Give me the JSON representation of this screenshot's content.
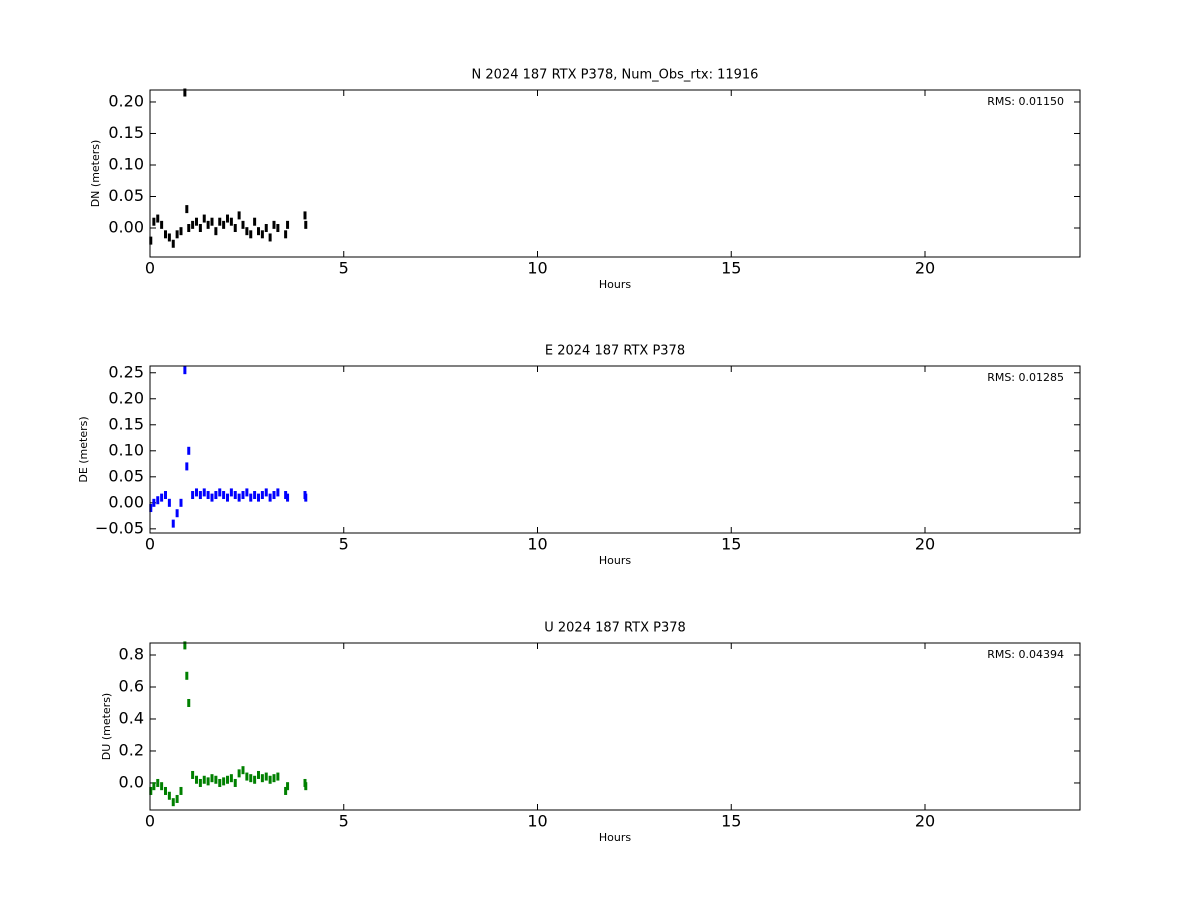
{
  "chart_data": [
    {
      "type": "scatter",
      "title": "N 2024 187 RTX  P378, Num_Obs_rtx: 11916",
      "x_label": "Hours",
      "y_label": "DN (meters)",
      "annotation": "RMS:  0.01150",
      "annotation_color": "#0000ff",
      "xlim": [
        0,
        24
      ],
      "xticks": [
        0,
        5,
        10,
        15,
        20
      ],
      "ylim": [
        -0.046,
        0.219
      ],
      "yticks": [
        {
          "value": 0,
          "label": "0.00"
        },
        {
          "value": 0.05,
          "label": "0.05"
        },
        {
          "value": 0.1,
          "label": "0.10"
        },
        {
          "value": 0.15,
          "label": "0.15"
        },
        {
          "value": 0.2,
          "label": "0.20"
        }
      ],
      "color": "#000000",
      "x": [
        0.02,
        0.1,
        0.2,
        0.3,
        0.4,
        0.5,
        0.6,
        0.7,
        0.8,
        0.9,
        0.95,
        1.0,
        1.1,
        1.2,
        1.3,
        1.4,
        1.5,
        1.6,
        1.7,
        1.8,
        1.9,
        2.0,
        2.1,
        2.2,
        2.3,
        2.4,
        2.5,
        2.6,
        2.7,
        2.8,
        2.9,
        3.0,
        3.1,
        3.2,
        3.3,
        3.5,
        3.55,
        4.0,
        4.02
      ],
      "values": [
        -0.02,
        0.01,
        0.015,
        0.005,
        -0.01,
        -0.015,
        -0.025,
        -0.01,
        -0.005,
        0.215,
        0.03,
        0.0,
        0.005,
        0.01,
        0.0,
        0.015,
        0.005,
        0.01,
        -0.005,
        0.01,
        0.005,
        0.015,
        0.01,
        0.0,
        0.02,
        0.005,
        -0.005,
        -0.01,
        0.01,
        -0.005,
        -0.01,
        0.0,
        -0.015,
        0.005,
        0.0,
        -0.01,
        0.005,
        0.02,
        0.005
      ]
    },
    {
      "type": "scatter",
      "title": "E 2024 187 RTX  P378",
      "x_label": "Hours",
      "y_label": "DE (meters)",
      "annotation": "RMS:  0.01285",
      "annotation_color": "#0000ff",
      "xlim": [
        0,
        24
      ],
      "xticks": [
        0,
        5,
        10,
        15,
        20
      ],
      "ylim": [
        -0.058,
        0.263
      ],
      "yticks": [
        {
          "value": -0.05,
          "label": "−0.05"
        },
        {
          "value": 0,
          "label": "0.00"
        },
        {
          "value": 0.05,
          "label": "0.05"
        },
        {
          "value": 0.1,
          "label": "0.10"
        },
        {
          "value": 0.15,
          "label": "0.15"
        },
        {
          "value": 0.2,
          "label": "0.20"
        },
        {
          "value": 0.25,
          "label": "0.25"
        }
      ],
      "color": "#0000ff",
      "x": [
        0.02,
        0.1,
        0.2,
        0.3,
        0.4,
        0.5,
        0.6,
        0.7,
        0.8,
        0.9,
        0.95,
        1.0,
        1.1,
        1.2,
        1.3,
        1.4,
        1.5,
        1.6,
        1.7,
        1.8,
        1.9,
        2.0,
        2.1,
        2.2,
        2.3,
        2.4,
        2.5,
        2.6,
        2.7,
        2.8,
        2.9,
        3.0,
        3.1,
        3.2,
        3.3,
        3.5,
        3.55,
        4.0,
        4.02
      ],
      "values": [
        -0.01,
        0.0,
        0.005,
        0.01,
        0.015,
        0.0,
        -0.04,
        -0.02,
        0.0,
        0.255,
        0.07,
        0.1,
        0.015,
        0.02,
        0.015,
        0.02,
        0.015,
        0.01,
        0.015,
        0.02,
        0.015,
        0.01,
        0.02,
        0.015,
        0.01,
        0.015,
        0.02,
        0.01,
        0.015,
        0.01,
        0.015,
        0.02,
        0.01,
        0.015,
        0.02,
        0.015,
        0.01,
        0.015,
        0.01
      ]
    },
    {
      "type": "scatter",
      "title": "U 2024 187 RTX  P378",
      "x_label": "Hours",
      "y_label": "DU (meters)",
      "annotation": "RMS:  0.04394",
      "annotation_color": "#0000ff",
      "xlim": [
        0,
        24
      ],
      "xticks": [
        0,
        5,
        10,
        15,
        20
      ],
      "ylim": [
        -0.169,
        0.875
      ],
      "yticks": [
        {
          "value": 0,
          "label": "0.0"
        },
        {
          "value": 0.2,
          "label": "0.2"
        },
        {
          "value": 0.4,
          "label": "0.4"
        },
        {
          "value": 0.6,
          "label": "0.6"
        },
        {
          "value": 0.8,
          "label": "0.8"
        }
      ],
      "color": "#008000",
      "x": [
        0.02,
        0.1,
        0.2,
        0.3,
        0.4,
        0.5,
        0.6,
        0.7,
        0.8,
        0.9,
        0.95,
        1.0,
        1.1,
        1.2,
        1.3,
        1.4,
        1.5,
        1.6,
        1.7,
        1.8,
        1.9,
        2.0,
        2.1,
        2.2,
        2.3,
        2.4,
        2.5,
        2.6,
        2.7,
        2.8,
        2.9,
        3.0,
        3.1,
        3.2,
        3.3,
        3.5,
        3.55,
        4.0,
        4.02
      ],
      "values": [
        -0.05,
        -0.02,
        0.0,
        -0.02,
        -0.05,
        -0.08,
        -0.12,
        -0.1,
        -0.05,
        0.86,
        0.67,
        0.5,
        0.05,
        0.02,
        0.0,
        0.02,
        0.01,
        0.03,
        0.02,
        0.0,
        0.01,
        0.02,
        0.03,
        0.0,
        0.06,
        0.08,
        0.04,
        0.03,
        0.02,
        0.05,
        0.03,
        0.04,
        0.02,
        0.03,
        0.04,
        -0.05,
        -0.02,
        0.0,
        -0.02
      ]
    }
  ]
}
